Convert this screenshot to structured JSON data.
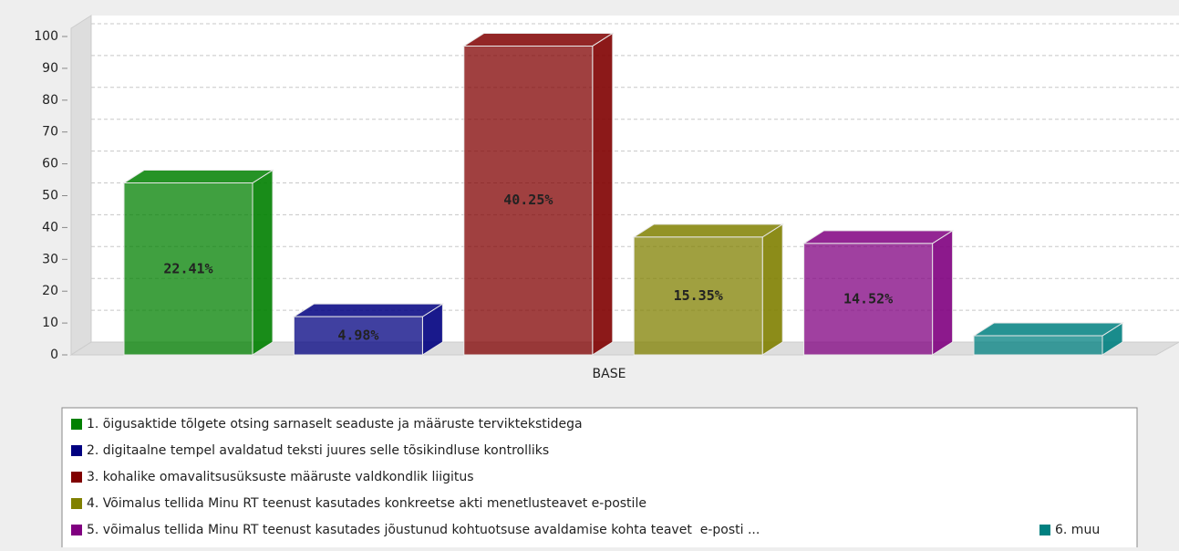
{
  "chart_data": {
    "type": "bar3d",
    "categories": [
      "BASE"
    ],
    "ylim": [
      0,
      100
    ],
    "yticks": [
      0,
      10,
      20,
      30,
      40,
      50,
      60,
      70,
      80,
      90,
      100
    ],
    "grid": true,
    "series": [
      {
        "name": "1. õigusaktide tõlgete otsing sarnaselt seaduste ja määruste terviktekstidega",
        "color": "#008000",
        "values": [
          54
        ],
        "labels": [
          {
            "value": 22.41,
            "label": "22.41%"
          }
        ]
      },
      {
        "name": "2. digitaalne tempel avaldatud teksti juures selle tõsikindluse kontrolliks",
        "color": "#000080",
        "values": [
          12
        ],
        "labels": [
          {
            "value": 4.98,
            "label": "4.98%"
          }
        ]
      },
      {
        "name": "3. kohalike omavalitsusüksuste määruste valdkondlik liigitus",
        "color": "#800000",
        "values": [
          97
        ],
        "labels": [
          {
            "value": 40.25,
            "label": "40.25%"
          }
        ]
      },
      {
        "name": "4. Võimalus tellida Minu RT teenust kasutades konkreetse akti menetlusteavet e-postile",
        "color": "#808000",
        "values": [
          37
        ],
        "labels": [
          {
            "value": 15.35,
            "label": "15.35%"
          }
        ]
      },
      {
        "name": "5. võimalus tellida Minu RT teenust kasutades jõustunud kohtuotsuse avaldamise kohta teavet  e-posti ...",
        "color": "#800080",
        "values": [
          35
        ],
        "labels": [
          {
            "value": 14.52,
            "label": "14.52%"
          }
        ]
      },
      {
        "name": "6. muu",
        "color": "#008080",
        "values": [
          6
        ],
        "labels": [
          null
        ]
      }
    ]
  }
}
